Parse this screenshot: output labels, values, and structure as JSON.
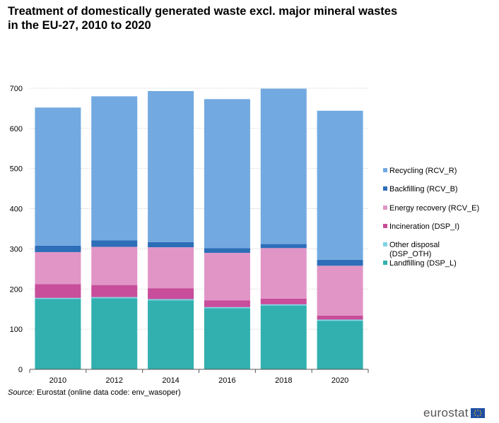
{
  "title": "Treatment of domestically generated waste excl. major mineral wastes in the EU-27, 2010 to 2020",
  "source": {
    "prefix": "Source:",
    "text": " Eurostat (online data code: env_wasoper)"
  },
  "logo": {
    "text": "eurostat",
    "flag_icon": "eu-flag-icon"
  },
  "colors": {
    "Landfilling (DSP_L)": "#32b0b0",
    "Other disposal (DSP_OTH)": "#7fd3e3",
    "Incineration (DSP_I)": "#c84d9a",
    "Energy recovery (RCV_E)": "#e195c6",
    "Backfilling (RCV_B)": "#2d6eb8",
    "Recycling (RCV_R)": "#72a9e0",
    "grid": "#c8c8c8",
    "axis": "#555555"
  },
  "chart_data": {
    "type": "bar",
    "stacked": true,
    "title": "Treatment of domestically generated waste excl. major mineral wastes in the EU-27, 2010 to 2020",
    "xlabel": "",
    "ylabel": "",
    "ylim": [
      0,
      700
    ],
    "yticks": [
      0,
      100,
      200,
      300,
      400,
      500,
      600,
      700
    ],
    "grid": true,
    "legend_position": "right",
    "categories": [
      "2010",
      "2012",
      "2014",
      "2016",
      "2018",
      "2020"
    ],
    "series": [
      {
        "name": "Landfilling (DSP_L)",
        "values": [
          175,
          177,
          172,
          152,
          159,
          121
        ]
      },
      {
        "name": "Other disposal (DSP_OTH)",
        "values": [
          3,
          3,
          3,
          3,
          3,
          3
        ]
      },
      {
        "name": "Incineration (DSP_I)",
        "values": [
          34,
          30,
          27,
          17,
          14,
          10
        ]
      },
      {
        "name": "Energy recovery (RCV_E)",
        "values": [
          80,
          95,
          102,
          118,
          126,
          124
        ]
      },
      {
        "name": "Backfilling (RCV_B)",
        "values": [
          16,
          16,
          13,
          12,
          10,
          15
        ]
      },
      {
        "name": "Recycling (RCV_R)",
        "values": [
          344,
          359,
          376,
          371,
          387,
          371
        ]
      }
    ],
    "legend_order": [
      {
        "label_lines": [
          "Recycling (RCV_R)"
        ],
        "series": "Recycling (RCV_R)"
      },
      {
        "label_lines": [
          "Backfilling (RCV_B)"
        ],
        "series": "Backfilling (RCV_B)"
      },
      {
        "label_lines": [
          "Energy recovery (RCV_E)"
        ],
        "series": "Energy recovery (RCV_E)"
      },
      {
        "label_lines": [
          "Incineration (DSP_I)"
        ],
        "series": "Incineration (DSP_I)"
      },
      {
        "label_lines": [
          "Other disposal",
          "(DSP_OTH)"
        ],
        "series": "Other disposal (DSP_OTH)"
      },
      {
        "label_lines": [
          "Landfilling (DSP_L)"
        ],
        "series": "Landfilling (DSP_L)"
      }
    ]
  }
}
